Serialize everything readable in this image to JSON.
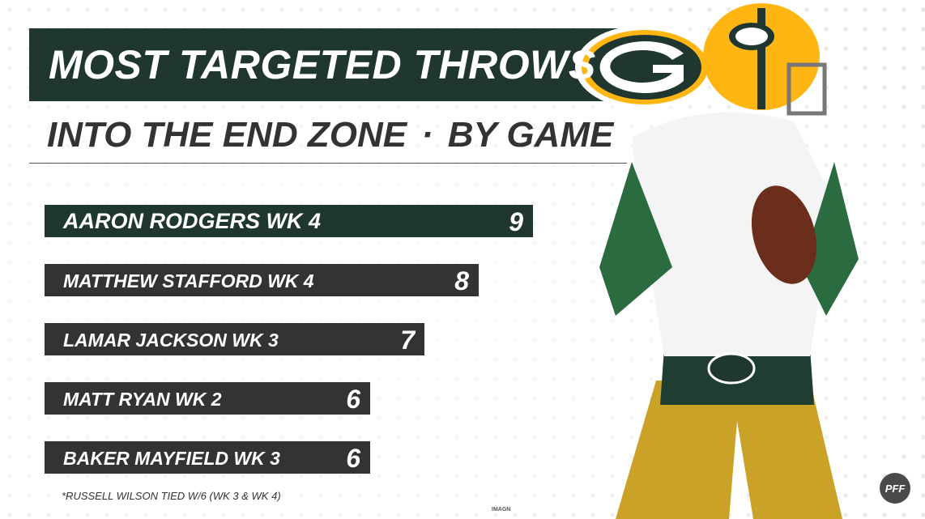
{
  "title": "MOST TARGETED THROWS",
  "subtitle_left": "INTO THE END ZONE",
  "subtitle_sep": "·",
  "subtitle_right": "BY GAME",
  "colors": {
    "highlight": "#203731",
    "default_bar": "#333333",
    "accent_gold": "#FFB612",
    "text_light": "#ffffff"
  },
  "chart_data": {
    "type": "bar",
    "orientation": "horizontal",
    "categories": [
      "AARON RODGERS WK 4",
      "MATTHEW STAFFORD WK 4",
      "LAMAR JACKSON WK 3",
      "MATT RYAN WK 2",
      "BAKER MAYFIELD WK 3"
    ],
    "values": [
      9,
      8,
      7,
      6,
      6
    ],
    "highlight_index": 0,
    "xlim": [
      0,
      9
    ],
    "grid": false,
    "legend": "none"
  },
  "footnote": "*RUSSELL WILSON TIED W/6 (WK 3 & WK 4)",
  "credit": "IMAGN",
  "brand_logo": "PFF",
  "icons": [
    "team-g-logo-icon",
    "pff-logo-icon"
  ]
}
